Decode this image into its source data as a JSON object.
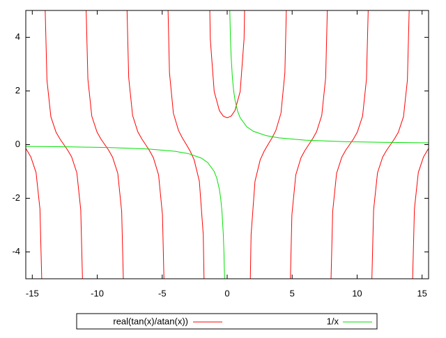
{
  "chart_data": {
    "type": "line",
    "xlim": [
      -15.5,
      15.5
    ],
    "xticks": [
      -15,
      -10,
      -5,
      0,
      5,
      10,
      15
    ],
    "ylim": [
      -5,
      5
    ],
    "yticks": [
      -4,
      -2,
      0,
      2,
      4
    ],
    "grid": false,
    "legend": "bottom",
    "series": [
      {
        "name": "real(tan(x)/atan(x))",
        "color": "#ff0000",
        "x": [
          -15.5,
          -15.41,
          -15.11,
          -14.71,
          -14.41,
          -14.27,
          -14.14,
          -14.01,
          -13.87,
          -13.57,
          -13.17,
          -12.87,
          -12.57,
          -12.27,
          -11.97,
          -11.57,
          -11.27,
          -11.13,
          -10.99,
          -10.86,
          -10.72,
          -10.42,
          -10.02,
          -9.72,
          -9.42,
          -9.12,
          -8.82,
          -8.42,
          -8.12,
          -7.98,
          -7.85,
          -7.72,
          -7.58,
          -7.28,
          -6.88,
          -6.58,
          -6.28,
          -5.98,
          -5.68,
          -5.28,
          -4.98,
          -4.84,
          -4.71,
          -4.58,
          -4.44,
          -4.14,
          -3.74,
          -3.44,
          -3.14,
          -2.84,
          -2.54,
          -2.14,
          -1.84,
          -1.7,
          -1.57,
          -1.44,
          -1.3,
          -1,
          -0.6,
          -0.3,
          0,
          0.3,
          0.6,
          1,
          1.3,
          1.44,
          1.57,
          1.7,
          1.84,
          2.14,
          2.54,
          2.84,
          3.14,
          3.44,
          3.74,
          4.14,
          4.44,
          4.58,
          4.71,
          4.84,
          4.98,
          5.28,
          5.68,
          5.98,
          6.28,
          6.58,
          6.88,
          7.28,
          7.58,
          7.72,
          7.85,
          7.98,
          8.12,
          8.42,
          8.82,
          9.12,
          9.42,
          9.72,
          10.02,
          10.42,
          10.72,
          10.86,
          10.99,
          11.13,
          11.27,
          11.57,
          11.97,
          12.27,
          12.57,
          12.87,
          13.17,
          13.57,
          13.87,
          14.01,
          14.14,
          14.27,
          14.41,
          14.71,
          15.11,
          15.41,
          15.5
        ],
        "values": [
          -0.14,
          -0.21,
          -0.46,
          -1.04,
          -2.4,
          -5.06,
          null,
          5.07,
          2.4,
          1.04,
          0.46,
          0.21,
          0,
          -0.21,
          -0.46,
          -1.05,
          -2.43,
          -5.13,
          null,
          5.14,
          2.44,
          1.06,
          0.47,
          0.21,
          0,
          -0.21,
          -0.47,
          -1.07,
          -2.49,
          -5.26,
          null,
          5.27,
          2.5,
          1.09,
          0.48,
          0.22,
          0,
          -0.22,
          -0.49,
          -1.13,
          -2.62,
          -5.56,
          null,
          5.61,
          2.67,
          1.17,
          0.52,
          0.24,
          0,
          -0.25,
          -0.57,
          -1.37,
          -3.36,
          -7.31,
          null,
          7.88,
          3.94,
          1.98,
          1.27,
          1.06,
          1,
          1.06,
          1.27,
          1.98,
          3.94,
          7.88,
          null,
          -7.31,
          -3.36,
          -1.37,
          -0.57,
          -0.25,
          0,
          0.24,
          0.52,
          1.17,
          2.67,
          5.61,
          null,
          -5.56,
          -2.62,
          -1.13,
          -0.49,
          -0.22,
          0,
          0.22,
          0.48,
          1.09,
          2.5,
          5.27,
          null,
          -5.26,
          -2.49,
          -1.07,
          -0.47,
          -0.21,
          0,
          0.21,
          0.47,
          1.06,
          2.44,
          5.14,
          null,
          -5.13,
          -2.43,
          -1.05,
          -0.46,
          -0.21,
          0,
          0.21,
          0.46,
          1.04,
          2.4,
          5.07,
          null,
          -5.06,
          -2.4,
          -1.04,
          -0.46,
          -0.21,
          -0.14
        ]
      },
      {
        "name": "1/x",
        "color": "#00e000",
        "x": [
          -15.5,
          -12,
          -9,
          -6,
          -4,
          -3,
          -2,
          -1.5,
          -1,
          -0.8,
          -0.6,
          -0.5,
          -0.4,
          -0.3,
          -0.25,
          -0.2,
          -0.15,
          0,
          0.15,
          0.2,
          0.25,
          0.3,
          0.4,
          0.5,
          0.6,
          0.8,
          1,
          1.5,
          2,
          3,
          4,
          6,
          9,
          12,
          15.5
        ],
        "values": [
          -0.065,
          -0.083,
          -0.111,
          -0.167,
          -0.25,
          -0.333,
          -0.5,
          -0.667,
          -1,
          -1.25,
          -1.667,
          -2,
          -2.5,
          -3.333,
          -4,
          -5,
          -6.667,
          null,
          6.667,
          5,
          4,
          3.333,
          2.5,
          2,
          1.667,
          1.25,
          1,
          0.667,
          0.5,
          0.333,
          0.25,
          0.167,
          0.111,
          0.083,
          0.065
        ]
      }
    ]
  }
}
